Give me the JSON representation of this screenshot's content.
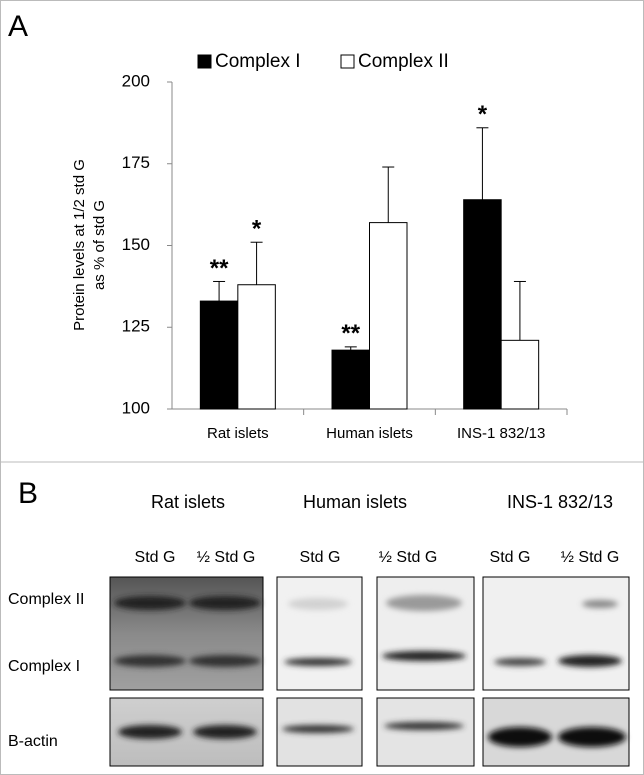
{
  "chart_data": {
    "type": "bar",
    "panel": "A",
    "ylabel": [
      "Protein levels at 1/2 std G",
      "as % of std G"
    ],
    "categories": [
      "Rat islets",
      "Human islets",
      "INS-1 832/13"
    ],
    "series": [
      {
        "name": "Complex I",
        "color": "#000000",
        "values": [
          133,
          118,
          164
        ],
        "errors": [
          6,
          1,
          22
        ],
        "significance": [
          "**",
          "**",
          "*"
        ]
      },
      {
        "name": "Complex II",
        "color": "#ffffff",
        "values": [
          138,
          157,
          121
        ],
        "errors": [
          13,
          17,
          18
        ],
        "significance": [
          "*",
          null,
          null
        ]
      }
    ],
    "ylim": [
      100,
      200
    ],
    "yticks": [
      100,
      125,
      150,
      175,
      200
    ],
    "grid": false
  },
  "blot": {
    "panel": "B",
    "groups": [
      {
        "title": "Rat islets",
        "lanes": [
          "Std G",
          "½ Std G"
        ]
      },
      {
        "title": "Human islets",
        "lanes": [
          "Std G",
          "½ Std G"
        ]
      },
      {
        "title": "INS-1 832/13",
        "lanes": [
          "Std G",
          "½ Std G"
        ]
      }
    ],
    "rows": [
      "Complex II",
      "Complex I",
      "B-actin"
    ]
  }
}
